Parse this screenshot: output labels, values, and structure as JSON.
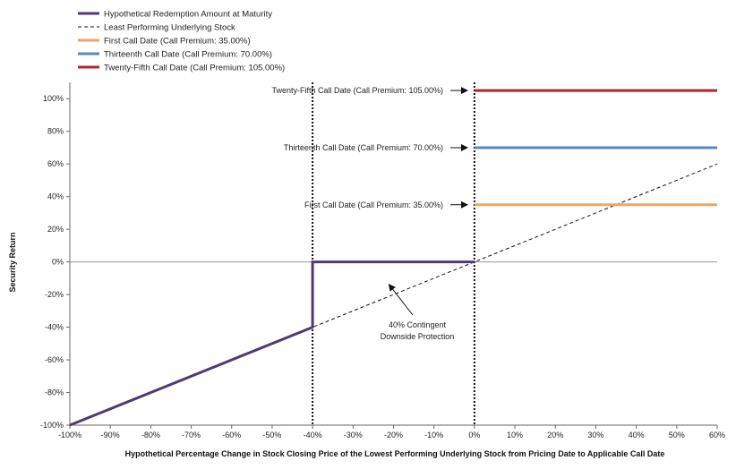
{
  "chart_data": {
    "type": "line",
    "xlabel": "Hypothetical Percentage Change in Stock Closing Price of the Lowest Performing Underlying Stock from Pricing Date to Applicable Call Date",
    "ylabel": "Security Return",
    "xlim": [
      -100,
      60
    ],
    "ylim": [
      -100,
      110
    ],
    "x_ticks": [
      -100,
      -90,
      -80,
      -70,
      -60,
      -50,
      -40,
      -30,
      -20,
      -10,
      0,
      10,
      20,
      30,
      40,
      50,
      60
    ],
    "x_tick_labels": [
      "-100%",
      "-90%",
      "-80%",
      "-70%",
      "-60%",
      "-50%",
      "-40%",
      "-30%",
      "-20%",
      "-10%",
      "0%",
      "10%",
      "20%",
      "30%",
      "40%",
      "50%",
      "60%"
    ],
    "y_ticks": [
      -100,
      -80,
      -60,
      -40,
      -20,
      0,
      20,
      40,
      60,
      80,
      100
    ],
    "y_tick_labels": [
      "-100%",
      "-80%",
      "-60%",
      "-40%",
      "-20%",
      "0%",
      "20%",
      "40%",
      "60%",
      "80%",
      "100%"
    ],
    "grid": false,
    "legend_position": "top-left",
    "series": [
      {
        "name": "Hypothetical Redemption Amount at Maturity",
        "color": "#4f3a73",
        "style": "solid",
        "x": [
          -100,
          -40,
          -40,
          0
        ],
        "y": [
          -100,
          -40,
          0,
          0
        ]
      },
      {
        "name": "Least Performing Underlying Stock",
        "color": "#111111",
        "style": "dashed",
        "x": [
          -100,
          60
        ],
        "y": [
          -100,
          60
        ]
      },
      {
        "name": "First Call Date (Call Premium: 35.00%)",
        "color": "#f4a460",
        "style": "solid",
        "x": [
          0,
          60
        ],
        "y": [
          35,
          35
        ]
      },
      {
        "name": "Thirteenth Call Date (Call Premium: 70.00%)",
        "color": "#5b86b8",
        "style": "solid",
        "x": [
          0,
          60
        ],
        "y": [
          70,
          70
        ]
      },
      {
        "name": "Twenty-Fifth Call Date (Call Premium: 105.00%)",
        "color": "#b0282e",
        "style": "solid",
        "x": [
          0,
          60
        ],
        "y": [
          105,
          105
        ]
      }
    ],
    "vertical_markers": [
      -40,
      0
    ],
    "annotations": [
      {
        "text": "Twenty-Fifth Call Date (Call Premium: 105.00%)",
        "y": 105
      },
      {
        "text": "Thirteenth Call Date (Call Premium: 70.00%)",
        "y": 70
      },
      {
        "text": "First Call Date (Call Premium: 35.00%)",
        "y": 35
      },
      {
        "text_lines": [
          "40% Contingent",
          "Downside Protection"
        ],
        "arrow_to": [
          -22,
          -16
        ]
      }
    ]
  }
}
